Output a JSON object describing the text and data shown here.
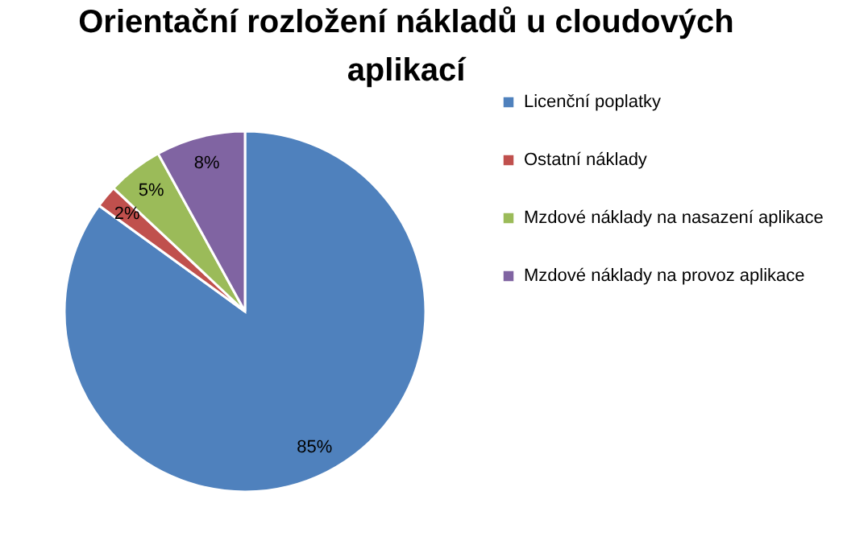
{
  "chart_data": {
    "type": "pie",
    "title": "Orientační rozložení nákladů u cloudových aplikací",
    "categories": [
      "Licenční poplatky",
      "Ostatní náklady",
      "Mzdové náklady na nasazení aplikace",
      "Mzdové náklady na provoz aplikace"
    ],
    "values": [
      85,
      2,
      5,
      8
    ],
    "colors": [
      "#4f81bd",
      "#c0504d",
      "#9bbb59",
      "#8064a2"
    ],
    "value_labels": [
      "85%",
      "2%",
      "5%",
      "8%"
    ],
    "legend": "right"
  }
}
